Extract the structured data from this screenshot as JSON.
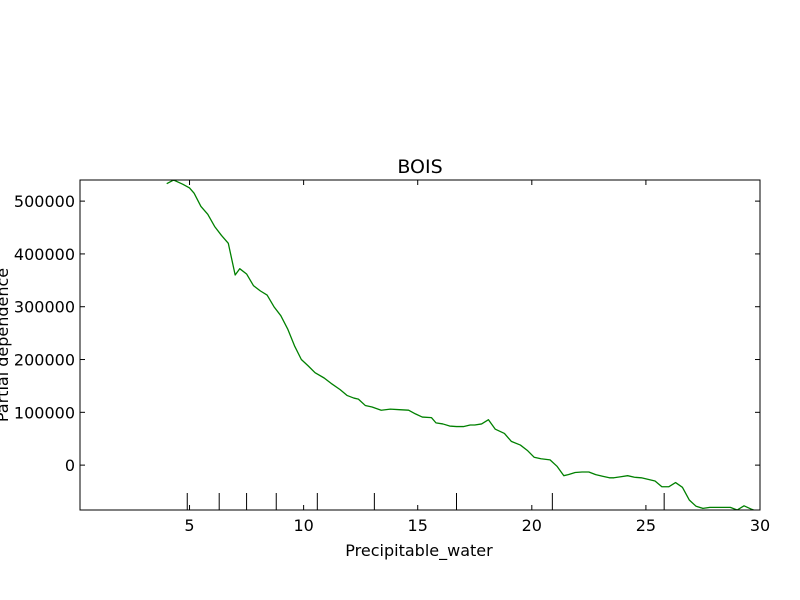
{
  "chart_data": {
    "type": "line",
    "title": "BOIS",
    "xlabel": "Precipitable_water",
    "ylabel": "Partial dependence",
    "xlim": [
      0.2,
      30
    ],
    "ylim": [
      -85000,
      540000
    ],
    "xticks": [
      5,
      10,
      15,
      20,
      25,
      30
    ],
    "yticks": [
      0,
      100000,
      200000,
      300000,
      400000,
      500000
    ],
    "grid": false,
    "line_color": "#008000",
    "rug_x": [
      4.9,
      6.3,
      7.5,
      8.8,
      10.6,
      13.1,
      16.7,
      20.9,
      25.8
    ],
    "series": [
      {
        "name": "",
        "x": [
          4.0,
          4.3,
          4.7,
          5.0,
          5.2,
          5.5,
          5.8,
          6.1,
          6.4,
          6.7,
          7.0,
          7.2,
          7.5,
          7.8,
          8.1,
          8.4,
          8.7,
          9.0,
          9.3,
          9.6,
          9.9,
          10.2,
          10.5,
          10.9,
          11.2,
          11.6,
          11.9,
          12.2,
          12.4,
          12.7,
          13.0,
          13.4,
          13.8,
          14.2,
          14.6,
          14.9,
          15.2,
          15.6,
          15.8,
          16.1,
          16.4,
          16.7,
          17.0,
          17.3,
          17.5,
          17.8,
          18.1,
          18.4,
          18.8,
          19.1,
          19.5,
          19.8,
          20.1,
          20.4,
          20.8,
          21.1,
          21.4,
          21.6,
          21.9,
          22.2,
          22.5,
          22.8,
          23.1,
          23.4,
          23.6,
          23.9,
          24.2,
          24.5,
          24.8,
          25.1,
          25.4,
          25.7,
          26.0,
          26.3,
          26.6,
          26.9,
          27.2,
          27.5,
          27.8,
          28.1,
          28.4,
          28.7,
          29.0,
          29.3,
          29.6,
          29.9
        ],
        "y": [
          533000,
          540000,
          532000,
          525000,
          515000,
          490000,
          475000,
          452000,
          435000,
          420000,
          360000,
          372000,
          362000,
          340000,
          330000,
          322000,
          300000,
          283000,
          258000,
          226000,
          200000,
          188000,
          175000,
          165000,
          155000,
          143000,
          132000,
          127000,
          125000,
          113000,
          110000,
          104000,
          106000,
          105000,
          104000,
          97000,
          91000,
          90000,
          80000,
          78000,
          74000,
          73000,
          73000,
          76000,
          76000,
          78000,
          86000,
          68000,
          60000,
          45000,
          38000,
          28000,
          15000,
          12000,
          10000,
          -2000,
          -20000,
          -18000,
          -14000,
          -13000,
          -13000,
          -18000,
          -21000,
          -24000,
          -24000,
          -22000,
          -20000,
          -23000,
          -24000,
          -27000,
          -30000,
          -41000,
          -41000,
          -33000,
          -42000,
          -66000,
          -78000,
          -82000,
          -80000,
          -80000,
          -80000,
          -80000,
          -85000,
          -77000,
          -83000,
          -88000
        ]
      }
    ]
  }
}
